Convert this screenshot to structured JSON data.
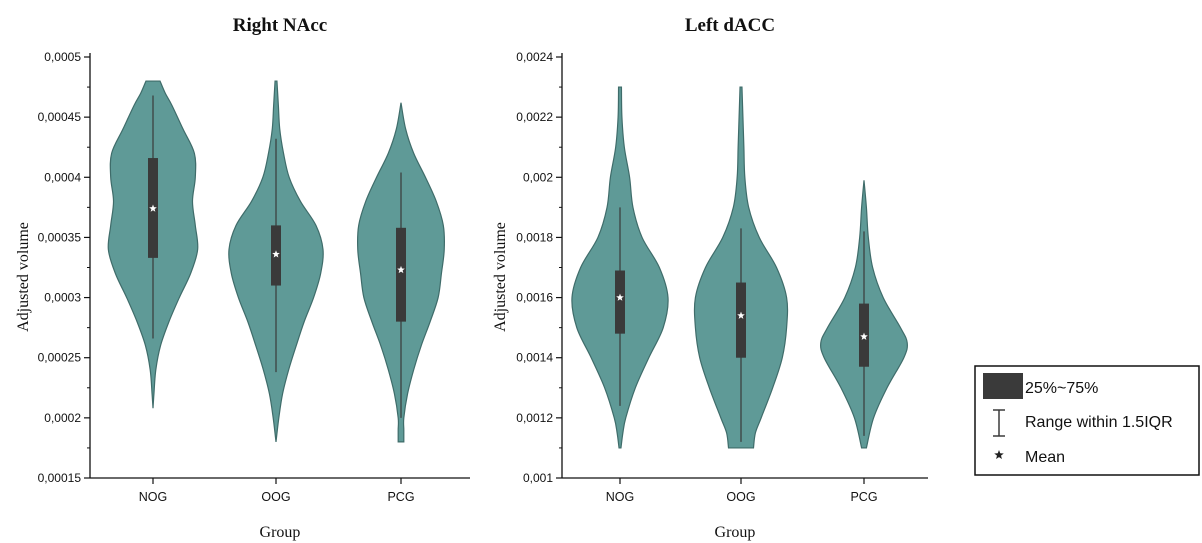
{
  "chart_data": [
    {
      "type": "violin",
      "title": "Right NAcc",
      "xlabel": "Group",
      "ylabel": "Adjusted volume",
      "ylim": [
        0.00015,
        0.0005
      ],
      "yticks": [
        0.00015,
        0.0002,
        0.00025,
        0.0003,
        0.00035,
        0.0004,
        0.00045,
        0.0005
      ],
      "ytick_labels": [
        "0,00015",
        "0,0002",
        "0,00025",
        "0,0003",
        "0,00035",
        "0,0004",
        "0,00045",
        "0,0005"
      ],
      "categories": [
        "NOG",
        "OOG",
        "PCG"
      ],
      "groups": [
        {
          "category": "NOG",
          "min": 0.000208,
          "max": 0.00048,
          "q1": 0.000333,
          "q3": 0.000416,
          "mean": 0.000374,
          "whisker_low": 0.000266,
          "whisker_high": 0.000468,
          "density": [
            [
              0.000208,
              0.0
            ],
            [
              0.00022,
              0.02
            ],
            [
              0.00024,
              0.06
            ],
            [
              0.00026,
              0.16
            ],
            [
              0.00028,
              0.34
            ],
            [
              0.0003,
              0.56
            ],
            [
              0.00032,
              0.8
            ],
            [
              0.00034,
              0.95
            ],
            [
              0.00036,
              0.9
            ],
            [
              0.00038,
              0.84
            ],
            [
              0.0004,
              0.9
            ],
            [
              0.00042,
              0.88
            ],
            [
              0.00044,
              0.64
            ],
            [
              0.00046,
              0.4
            ],
            [
              0.00047,
              0.26
            ],
            [
              0.00048,
              0.15
            ]
          ]
        },
        {
          "category": "OOG",
          "min": 0.00018,
          "max": 0.00048,
          "q1": 0.00031,
          "q3": 0.00036,
          "mean": 0.000336,
          "whisker_low": 0.000238,
          "whisker_high": 0.000432,
          "density": [
            [
              0.00018,
              0.0
            ],
            [
              0.0002,
              0.06
            ],
            [
              0.00022,
              0.14
            ],
            [
              0.00024,
              0.27
            ],
            [
              0.00026,
              0.43
            ],
            [
              0.00028,
              0.6
            ],
            [
              0.0003,
              0.8
            ],
            [
              0.00032,
              0.95
            ],
            [
              0.00034,
              1.0
            ],
            [
              0.00036,
              0.85
            ],
            [
              0.00038,
              0.52
            ],
            [
              0.0004,
              0.28
            ],
            [
              0.00042,
              0.16
            ],
            [
              0.00044,
              0.08
            ],
            [
              0.00046,
              0.05
            ],
            [
              0.00048,
              0.02
            ]
          ]
        },
        {
          "category": "PCG",
          "min": 0.00018,
          "max": 0.000462,
          "q1": 0.00028,
          "q3": 0.000358,
          "mean": 0.000323,
          "whisker_low": 0.0002,
          "whisker_high": 0.000404,
          "density": [
            [
              0.00018,
              0.06
            ],
            [
              0.00019,
              0.06
            ],
            [
              0.0002,
              0.06
            ],
            [
              0.00022,
              0.14
            ],
            [
              0.00024,
              0.27
            ],
            [
              0.00026,
              0.43
            ],
            [
              0.00028,
              0.62
            ],
            [
              0.0003,
              0.79
            ],
            [
              0.00032,
              0.86
            ],
            [
              0.00034,
              0.92
            ],
            [
              0.00036,
              0.9
            ],
            [
              0.00038,
              0.75
            ],
            [
              0.0004,
              0.52
            ],
            [
              0.00042,
              0.27
            ],
            [
              0.00044,
              0.1
            ],
            [
              0.000462,
              0.0
            ]
          ]
        }
      ]
    },
    {
      "type": "violin",
      "title": "Left dACC",
      "xlabel": "Group",
      "ylabel": "Adjusted volume",
      "ylim": [
        0.001,
        0.0024
      ],
      "yticks": [
        0.001,
        0.0012,
        0.0014,
        0.0016,
        0.0018,
        0.002,
        0.0022,
        0.0024
      ],
      "ytick_labels": [
        "0,001",
        "0,0012",
        "0,0014",
        "0,0016",
        "0,0018",
        "0,002",
        "0,0022",
        "0,0024"
      ],
      "categories": [
        "NOG",
        "OOG",
        "PCG"
      ],
      "groups": [
        {
          "category": "NOG",
          "min": 0.0011,
          "max": 0.0023,
          "q1": 0.00148,
          "q3": 0.00169,
          "mean": 0.0016,
          "whisker_low": 0.00124,
          "whisker_high": 0.0019,
          "density": [
            [
              0.0011,
              0.02
            ],
            [
              0.00115,
              0.06
            ],
            [
              0.0012,
              0.12
            ],
            [
              0.0013,
              0.32
            ],
            [
              0.0014,
              0.6
            ],
            [
              0.0015,
              0.9
            ],
            [
              0.0016,
              1.0
            ],
            [
              0.0017,
              0.82
            ],
            [
              0.0018,
              0.46
            ],
            [
              0.0019,
              0.27
            ],
            [
              0.002,
              0.2
            ],
            [
              0.0021,
              0.09
            ],
            [
              0.0022,
              0.04
            ],
            [
              0.0023,
              0.03
            ]
          ]
        },
        {
          "category": "OOG",
          "min": 0.0011,
          "max": 0.0023,
          "q1": 0.0014,
          "q3": 0.00165,
          "mean": 0.00154,
          "whisker_low": 0.00112,
          "whisker_high": 0.00183,
          "density": [
            [
              0.0011,
              0.26
            ],
            [
              0.00115,
              0.3
            ],
            [
              0.0012,
              0.42
            ],
            [
              0.0013,
              0.66
            ],
            [
              0.0014,
              0.86
            ],
            [
              0.0015,
              0.95
            ],
            [
              0.0016,
              0.95
            ],
            [
              0.0017,
              0.74
            ],
            [
              0.0018,
              0.38
            ],
            [
              0.0019,
              0.16
            ],
            [
              0.002,
              0.08
            ],
            [
              0.0021,
              0.06
            ],
            [
              0.0022,
              0.04
            ],
            [
              0.0023,
              0.02
            ]
          ]
        },
        {
          "category": "PCG",
          "min": 0.0011,
          "max": 0.00199,
          "q1": 0.00137,
          "q3": 0.00158,
          "mean": 0.00147,
          "whisker_low": 0.00114,
          "whisker_high": 0.00182,
          "density": [
            [
              0.0011,
              0.05
            ],
            [
              0.0012,
              0.2
            ],
            [
              0.0013,
              0.48
            ],
            [
              0.0014,
              0.83
            ],
            [
              0.00145,
              0.9
            ],
            [
              0.0015,
              0.76
            ],
            [
              0.0016,
              0.4
            ],
            [
              0.0017,
              0.18
            ],
            [
              0.0018,
              0.09
            ],
            [
              0.0019,
              0.05
            ],
            [
              0.00199,
              0.0
            ]
          ]
        }
      ]
    }
  ],
  "legend": {
    "placement": "right",
    "items": [
      "25%~75%",
      "Range within 1.5IQR",
      "Mean"
    ]
  },
  "colors": {
    "violin_fill": "#5f9a97",
    "violin_stroke": "#3f6c6a",
    "box": "#3a3a3a",
    "whisker": "#3a3a3a",
    "mean_marker": "#ffffff"
  }
}
